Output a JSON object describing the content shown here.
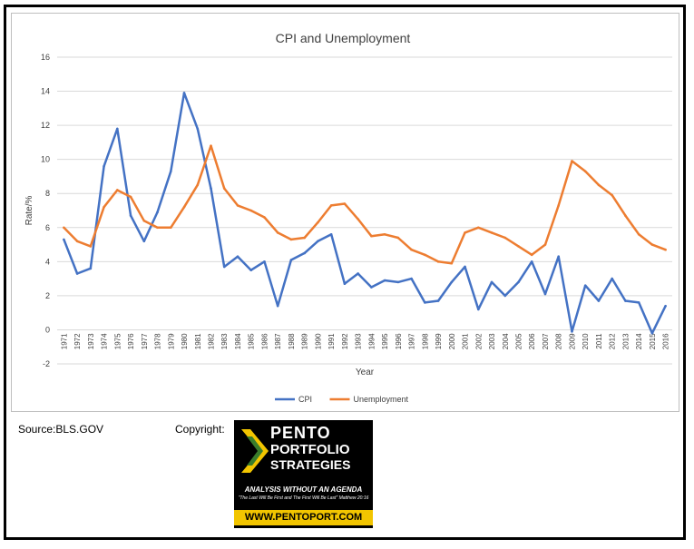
{
  "chart_data": {
    "type": "line",
    "title": "CPI and Unemployment",
    "xlabel": "Year",
    "ylabel": "Rate/%",
    "ylim": [
      -2,
      16
    ],
    "yticks": [
      -2,
      0,
      2,
      4,
      6,
      8,
      10,
      12,
      14,
      16
    ],
    "grid": true,
    "legend_position": "bottom",
    "categories": [
      "1971",
      "1972",
      "1973",
      "1974",
      "1975",
      "1976",
      "1977",
      "1978",
      "1979",
      "1980",
      "1981",
      "1982",
      "1983",
      "1984",
      "1985",
      "1986",
      "1987",
      "1988",
      "1989",
      "1990",
      "1991",
      "1992",
      "1993",
      "1994",
      "1995",
      "1996",
      "1997",
      "1998",
      "1999",
      "2000",
      "2001",
      "2002",
      "2003",
      "2004",
      "2005",
      "2006",
      "2007",
      "2008",
      "2009",
      "2010",
      "2011",
      "2012",
      "2013",
      "2014",
      "2015",
      "2016"
    ],
    "series": [
      {
        "name": "CPI",
        "color": "#4472c4",
        "values": [
          5.3,
          3.3,
          3.6,
          9.6,
          11.8,
          6.7,
          5.2,
          6.9,
          9.3,
          13.9,
          11.8,
          8.3,
          3.7,
          4.3,
          3.5,
          4.0,
          1.4,
          4.1,
          4.5,
          5.2,
          5.6,
          2.7,
          3.3,
          2.5,
          2.9,
          2.8,
          3.0,
          1.6,
          1.7,
          2.8,
          3.7,
          1.2,
          2.8,
          2.0,
          2.8,
          4.0,
          2.1,
          4.3,
          -0.1,
          2.6,
          1.7,
          3.0,
          1.7,
          1.6,
          -0.2,
          1.4
        ]
      },
      {
        "name": "Unemployment",
        "color": "#ed7d31",
        "values": [
          6.0,
          5.2,
          4.9,
          7.2,
          8.2,
          7.8,
          6.4,
          6.0,
          6.0,
          7.2,
          8.5,
          10.8,
          8.3,
          7.3,
          7.0,
          6.6,
          5.7,
          5.3,
          5.4,
          6.3,
          7.3,
          7.4,
          6.5,
          5.5,
          5.6,
          5.4,
          4.7,
          4.4,
          4.0,
          3.9,
          5.7,
          6.0,
          5.7,
          5.4,
          4.9,
          4.4,
          5.0,
          7.3,
          9.9,
          9.3,
          8.5,
          7.9,
          6.7,
          5.6,
          5.0,
          4.7
        ]
      }
    ]
  },
  "footer": {
    "source": "Source:BLS.GOV",
    "copyright": "Copyright:"
  },
  "logo": {
    "line1": "PENTO",
    "line2": "PORTFOLIO",
    "line3": "STRATEGIES",
    "agenda": "ANALYSIS WITHOUT AN AGENDA",
    "quote": "\"The Last Will Be First and The First Will Be Last\" Matthew 20:16",
    "url": "WWW.PENTOPORT.COM",
    "accent": "#f2c500"
  }
}
